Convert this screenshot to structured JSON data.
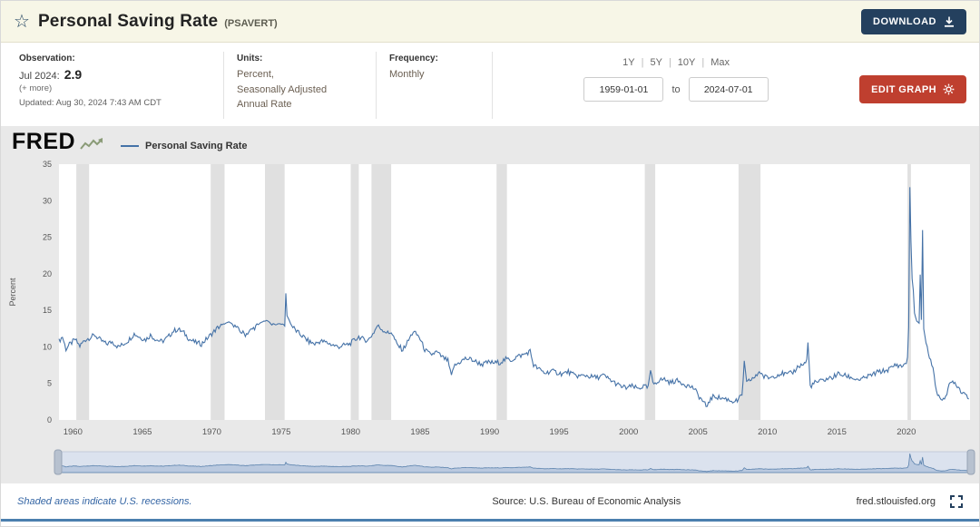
{
  "header": {
    "title": "Personal Saving Rate",
    "series_id": "(PSAVERT)",
    "download_label": "DOWNLOAD"
  },
  "info": {
    "observation": {
      "label": "Observation:",
      "date": "Jul 2024:",
      "value": "2.9",
      "more": "(+ more)",
      "updated": "Updated: Aug 30, 2024 7:43 AM CDT"
    },
    "units": {
      "label": "Units:",
      "lines": [
        "Percent,",
        "Seasonally Adjusted",
        "Annual Rate"
      ]
    },
    "frequency": {
      "label": "Frequency:",
      "value": "Monthly"
    },
    "ranges": {
      "options": [
        "1Y",
        "5Y",
        "10Y",
        "Max"
      ],
      "separator": "|"
    },
    "date_from": "1959-01-01",
    "date_to_label": "to",
    "date_to": "2024-07-01",
    "edit_graph_label": "EDIT GRAPH"
  },
  "chart": {
    "brand": "FRED",
    "legend_label": "Personal Saving Rate",
    "ylabel": "Percent"
  },
  "footer": {
    "recession_note": "Shaded areas indicate U.S. recessions.",
    "source": "Source: U.S. Bureau of Economic Analysis",
    "site": "fred.stlouisfed.org"
  },
  "colors": {
    "line": "#4572a7",
    "recession": "#e0e0e0",
    "header_bg": "#f7f6e7",
    "panel_bg": "#e9e9e9",
    "download_button": "#24405e",
    "edit_button": "#bf3f2f",
    "brush_bg": "#dbe2ee",
    "brush_line": "#5b82ad",
    "brush_fill": "#9fb5d4",
    "bottom_line": "#4b7fae",
    "note_link": "#3465a4"
  },
  "chart_data": {
    "type": "line",
    "title": "Personal Saving Rate",
    "xlabel": "",
    "ylabel": "Percent",
    "x_range": [
      1959.0,
      2024.5833
    ],
    "ylim": [
      0,
      35
    ],
    "y_ticks": [
      0,
      5,
      10,
      15,
      20,
      25,
      30,
      35
    ],
    "x_ticks": [
      1960,
      1965,
      1970,
      1975,
      1980,
      1985,
      1990,
      1995,
      2000,
      2005,
      2010,
      2015,
      2020
    ],
    "grid": false,
    "legend_position": "top-left",
    "noise_amplitude": 0.35,
    "recessions": [
      [
        1960.25,
        1961.17
      ],
      [
        1969.92,
        1970.92
      ],
      [
        1973.83,
        1975.25
      ],
      [
        1980.0,
        1980.58
      ],
      [
        1981.5,
        1982.92
      ],
      [
        1990.5,
        1991.25
      ],
      [
        2001.17,
        2001.92
      ],
      [
        2007.92,
        2009.5
      ],
      [
        2020.08,
        2020.33
      ]
    ],
    "series": [
      {
        "name": "Personal Saving Rate",
        "anchors": [
          [
            1959.0,
            10.8
          ],
          [
            1959.25,
            11.4
          ],
          [
            1959.5,
            9.7
          ],
          [
            1959.75,
            10.3
          ],
          [
            1960.1667,
            11.0
          ],
          [
            1960.5,
            10.1
          ],
          [
            1960.8333,
            10.9
          ],
          [
            1961.25,
            11.3
          ],
          [
            1961.5833,
            11.6
          ],
          [
            1962.0,
            10.9
          ],
          [
            1962.4167,
            10.4
          ],
          [
            1962.8333,
            10.7
          ],
          [
            1963.25,
            10.0
          ],
          [
            1963.5833,
            10.3
          ],
          [
            1964.0,
            10.9
          ],
          [
            1964.4167,
            11.8
          ],
          [
            1964.8333,
            11.3
          ],
          [
            1965.25,
            11.0
          ],
          [
            1965.5833,
            11.6
          ],
          [
            1966.0,
            11.0
          ],
          [
            1966.4167,
            10.7
          ],
          [
            1966.8333,
            11.3
          ],
          [
            1967.25,
            12.2
          ],
          [
            1967.5833,
            12.4
          ],
          [
            1968.0,
            11.9
          ],
          [
            1968.4167,
            11.0
          ],
          [
            1968.8333,
            10.6
          ],
          [
            1969.25,
            10.4
          ],
          [
            1969.5833,
            11.0
          ],
          [
            1970.0,
            11.8
          ],
          [
            1970.4167,
            12.6
          ],
          [
            1970.8333,
            13.1
          ],
          [
            1971.25,
            13.4
          ],
          [
            1971.5833,
            13.0
          ],
          [
            1972.0,
            12.2
          ],
          [
            1972.4167,
            11.7
          ],
          [
            1972.8333,
            12.3
          ],
          [
            1973.25,
            12.9
          ],
          [
            1973.5833,
            13.4
          ],
          [
            1974.0,
            13.6
          ],
          [
            1974.4167,
            12.9
          ],
          [
            1974.8333,
            13.2
          ],
          [
            1975.25,
            13.0
          ],
          [
            1975.3333,
            17.3
          ],
          [
            1975.4167,
            14.3
          ],
          [
            1975.75,
            12.9
          ],
          [
            1976.1667,
            12.0
          ],
          [
            1976.5833,
            11.4
          ],
          [
            1977.0,
            10.7
          ],
          [
            1977.4167,
            10.4
          ],
          [
            1977.8333,
            10.8
          ],
          [
            1978.25,
            10.6
          ],
          [
            1978.6667,
            10.3
          ],
          [
            1979.0833,
            10.0
          ],
          [
            1979.5,
            10.2
          ],
          [
            1979.9167,
            10.4
          ],
          [
            1980.3333,
            11.0
          ],
          [
            1980.5833,
            11.4
          ],
          [
            1980.9167,
            11.0
          ],
          [
            1981.25,
            10.9
          ],
          [
            1981.6667,
            12.0
          ],
          [
            1981.9167,
            12.9
          ],
          [
            1982.3333,
            12.3
          ],
          [
            1982.75,
            11.8
          ],
          [
            1982.9167,
            12.1
          ],
          [
            1983.3333,
            10.3
          ],
          [
            1983.75,
            9.6
          ],
          [
            1984.1667,
            10.9
          ],
          [
            1984.5,
            12.1
          ],
          [
            1984.9167,
            11.4
          ],
          [
            1985.3333,
            9.6
          ],
          [
            1985.75,
            8.9
          ],
          [
            1986.1667,
            9.3
          ],
          [
            1986.5833,
            8.6
          ],
          [
            1987.0,
            8.1
          ],
          [
            1987.25,
            5.9
          ],
          [
            1987.4167,
            7.3
          ],
          [
            1987.8333,
            7.9
          ],
          [
            1988.25,
            8.4
          ],
          [
            1988.6667,
            8.3
          ],
          [
            1989.0833,
            7.9
          ],
          [
            1989.5,
            7.6
          ],
          [
            1989.9167,
            7.9
          ],
          [
            1990.3333,
            7.8
          ],
          [
            1990.75,
            7.9
          ],
          [
            1991.1667,
            8.3
          ],
          [
            1991.5833,
            8.2
          ],
          [
            1992.0,
            8.7
          ],
          [
            1992.4167,
            8.9
          ],
          [
            1992.9167,
            9.4
          ],
          [
            1993.1667,
            7.5
          ],
          [
            1993.5833,
            6.9
          ],
          [
            1994.0,
            6.4
          ],
          [
            1994.4167,
            6.7
          ],
          [
            1994.8333,
            6.5
          ],
          [
            1995.25,
            6.3
          ],
          [
            1995.6667,
            6.6
          ],
          [
            1996.0833,
            6.1
          ],
          [
            1996.5,
            6.0
          ],
          [
            1996.9167,
            6.1
          ],
          [
            1997.3333,
            5.9
          ],
          [
            1997.75,
            5.8
          ],
          [
            1998.1667,
            6.1
          ],
          [
            1998.5833,
            5.6
          ],
          [
            1999.0,
            5.1
          ],
          [
            1999.4167,
            4.6
          ],
          [
            1999.8333,
            4.4
          ],
          [
            2000.25,
            4.6
          ],
          [
            2000.6667,
            4.3
          ],
          [
            2001.0833,
            4.6
          ],
          [
            2001.4167,
            4.4
          ],
          [
            2001.5833,
            6.8
          ],
          [
            2001.75,
            4.9
          ],
          [
            2002.1667,
            5.4
          ],
          [
            2002.5833,
            5.6
          ],
          [
            2003.0,
            5.1
          ],
          [
            2003.4167,
            5.4
          ],
          [
            2003.8333,
            5.1
          ],
          [
            2004.25,
            4.7
          ],
          [
            2004.6667,
            4.4
          ],
          [
            2005.0833,
            3.2
          ],
          [
            2005.5,
            2.2
          ],
          [
            2005.5833,
            1.5
          ],
          [
            2005.75,
            2.5
          ],
          [
            2006.1667,
            3.3
          ],
          [
            2006.5833,
            3.0
          ],
          [
            2007.0,
            2.9
          ],
          [
            2007.4167,
            2.6
          ],
          [
            2007.8333,
            2.6
          ],
          [
            2008.1667,
            3.4
          ],
          [
            2008.3333,
            7.9
          ],
          [
            2008.5,
            5.0
          ],
          [
            2008.8333,
            5.6
          ],
          [
            2009.1667,
            5.9
          ],
          [
            2009.4167,
            6.7
          ],
          [
            2009.75,
            5.9
          ],
          [
            2010.1667,
            5.8
          ],
          [
            2010.5833,
            6.1
          ],
          [
            2011.0,
            6.4
          ],
          [
            2011.4167,
            6.2
          ],
          [
            2011.8333,
            6.5
          ],
          [
            2012.25,
            7.4
          ],
          [
            2012.5833,
            7.6
          ],
          [
            2012.8333,
            8.1
          ],
          [
            2012.9167,
            10.6
          ],
          [
            2013.0833,
            4.6
          ],
          [
            2013.4167,
            5.1
          ],
          [
            2013.8333,
            5.3
          ],
          [
            2014.25,
            5.6
          ],
          [
            2014.6667,
            5.8
          ],
          [
            2015.0833,
            6.3
          ],
          [
            2015.5,
            6.1
          ],
          [
            2015.9167,
            5.9
          ],
          [
            2016.3333,
            5.6
          ],
          [
            2016.75,
            5.5
          ],
          [
            2017.1667,
            5.9
          ],
          [
            2017.5833,
            6.2
          ],
          [
            2018.0,
            6.6
          ],
          [
            2018.4167,
            6.7
          ],
          [
            2018.8333,
            7.0
          ],
          [
            2019.25,
            7.6
          ],
          [
            2019.6667,
            7.3
          ],
          [
            2020.0,
            7.9
          ],
          [
            2020.0833,
            8.3
          ],
          [
            2020.1667,
            13.0
          ],
          [
            2020.25,
            31.8
          ],
          [
            2020.3333,
            24.5
          ],
          [
            2020.4167,
            19.3
          ],
          [
            2020.5,
            17.8
          ],
          [
            2020.5833,
            14.6
          ],
          [
            2020.75,
            13.5
          ],
          [
            2020.9167,
            13.2
          ],
          [
            2021.0,
            19.9
          ],
          [
            2021.0833,
            13.7
          ],
          [
            2021.1667,
            26.0
          ],
          [
            2021.25,
            12.6
          ],
          [
            2021.4167,
            10.6
          ],
          [
            2021.5833,
            9.2
          ],
          [
            2021.75,
            8.0
          ],
          [
            2021.9167,
            7.4
          ],
          [
            2022.0833,
            4.7
          ],
          [
            2022.25,
            3.6
          ],
          [
            2022.4167,
            2.7
          ],
          [
            2022.5833,
            3.0
          ],
          [
            2022.75,
            3.2
          ],
          [
            2022.9167,
            3.4
          ],
          [
            2023.0833,
            4.7
          ],
          [
            2023.25,
            5.2
          ],
          [
            2023.4167,
            5.3
          ],
          [
            2023.5833,
            4.9
          ],
          [
            2023.75,
            4.5
          ],
          [
            2023.9167,
            4.0
          ],
          [
            2024.0833,
            3.8
          ],
          [
            2024.25,
            3.6
          ],
          [
            2024.4167,
            3.3
          ],
          [
            2024.5,
            2.9
          ]
        ]
      }
    ]
  }
}
